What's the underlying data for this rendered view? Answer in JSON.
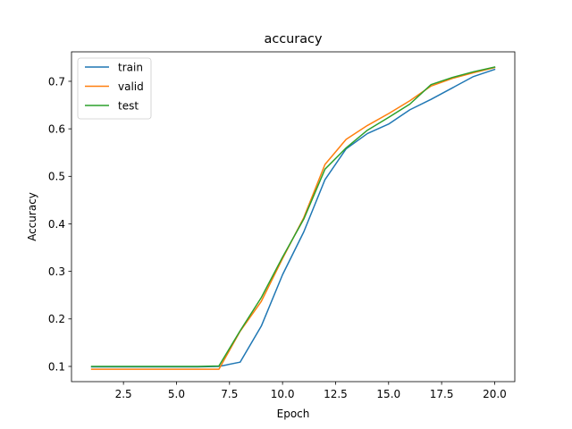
{
  "chart_data": {
    "type": "line",
    "title": "accuracy",
    "xlabel": "Epoch",
    "ylabel": "Accuracy",
    "xlim": [
      0.05,
      20.95
    ],
    "ylim": [
      0.068,
      0.762
    ],
    "xticks": [
      2.5,
      5.0,
      7.5,
      10.0,
      12.5,
      15.0,
      17.5,
      20.0
    ],
    "xtick_labels": [
      "2.5",
      "5.0",
      "7.5",
      "10.0",
      "12.5",
      "15.0",
      "17.5",
      "20.0"
    ],
    "yticks": [
      0.1,
      0.2,
      0.3,
      0.4,
      0.5,
      0.6,
      0.7
    ],
    "ytick_labels": [
      "0.1",
      "0.2",
      "0.3",
      "0.4",
      "0.5",
      "0.6",
      "0.7"
    ],
    "grid": false,
    "legend_position": "top-left",
    "x": [
      1,
      2,
      3,
      4,
      5,
      6,
      7,
      8,
      9,
      10,
      11,
      12,
      13,
      14,
      15,
      16,
      17,
      18,
      19,
      20
    ],
    "series": [
      {
        "name": "train",
        "color": "#1f77b4",
        "values": [
          0.099,
          0.099,
          0.099,
          0.099,
          0.099,
          0.099,
          0.1,
          0.109,
          0.185,
          0.293,
          0.383,
          0.493,
          0.558,
          0.59,
          0.61,
          0.64,
          0.662,
          0.686,
          0.71,
          0.725
        ]
      },
      {
        "name": "valid",
        "color": "#ff7f0e",
        "values": [
          0.094,
          0.094,
          0.094,
          0.094,
          0.094,
          0.094,
          0.094,
          0.174,
          0.237,
          0.327,
          0.413,
          0.525,
          0.578,
          0.607,
          0.632,
          0.659,
          0.69,
          0.706,
          0.718,
          0.729
        ]
      },
      {
        "name": "test",
        "color": "#2ca02c",
        "values": [
          0.1,
          0.1,
          0.1,
          0.1,
          0.1,
          0.1,
          0.101,
          0.175,
          0.245,
          0.33,
          0.41,
          0.515,
          0.56,
          0.597,
          0.624,
          0.652,
          0.693,
          0.708,
          0.72,
          0.73
        ]
      }
    ]
  }
}
